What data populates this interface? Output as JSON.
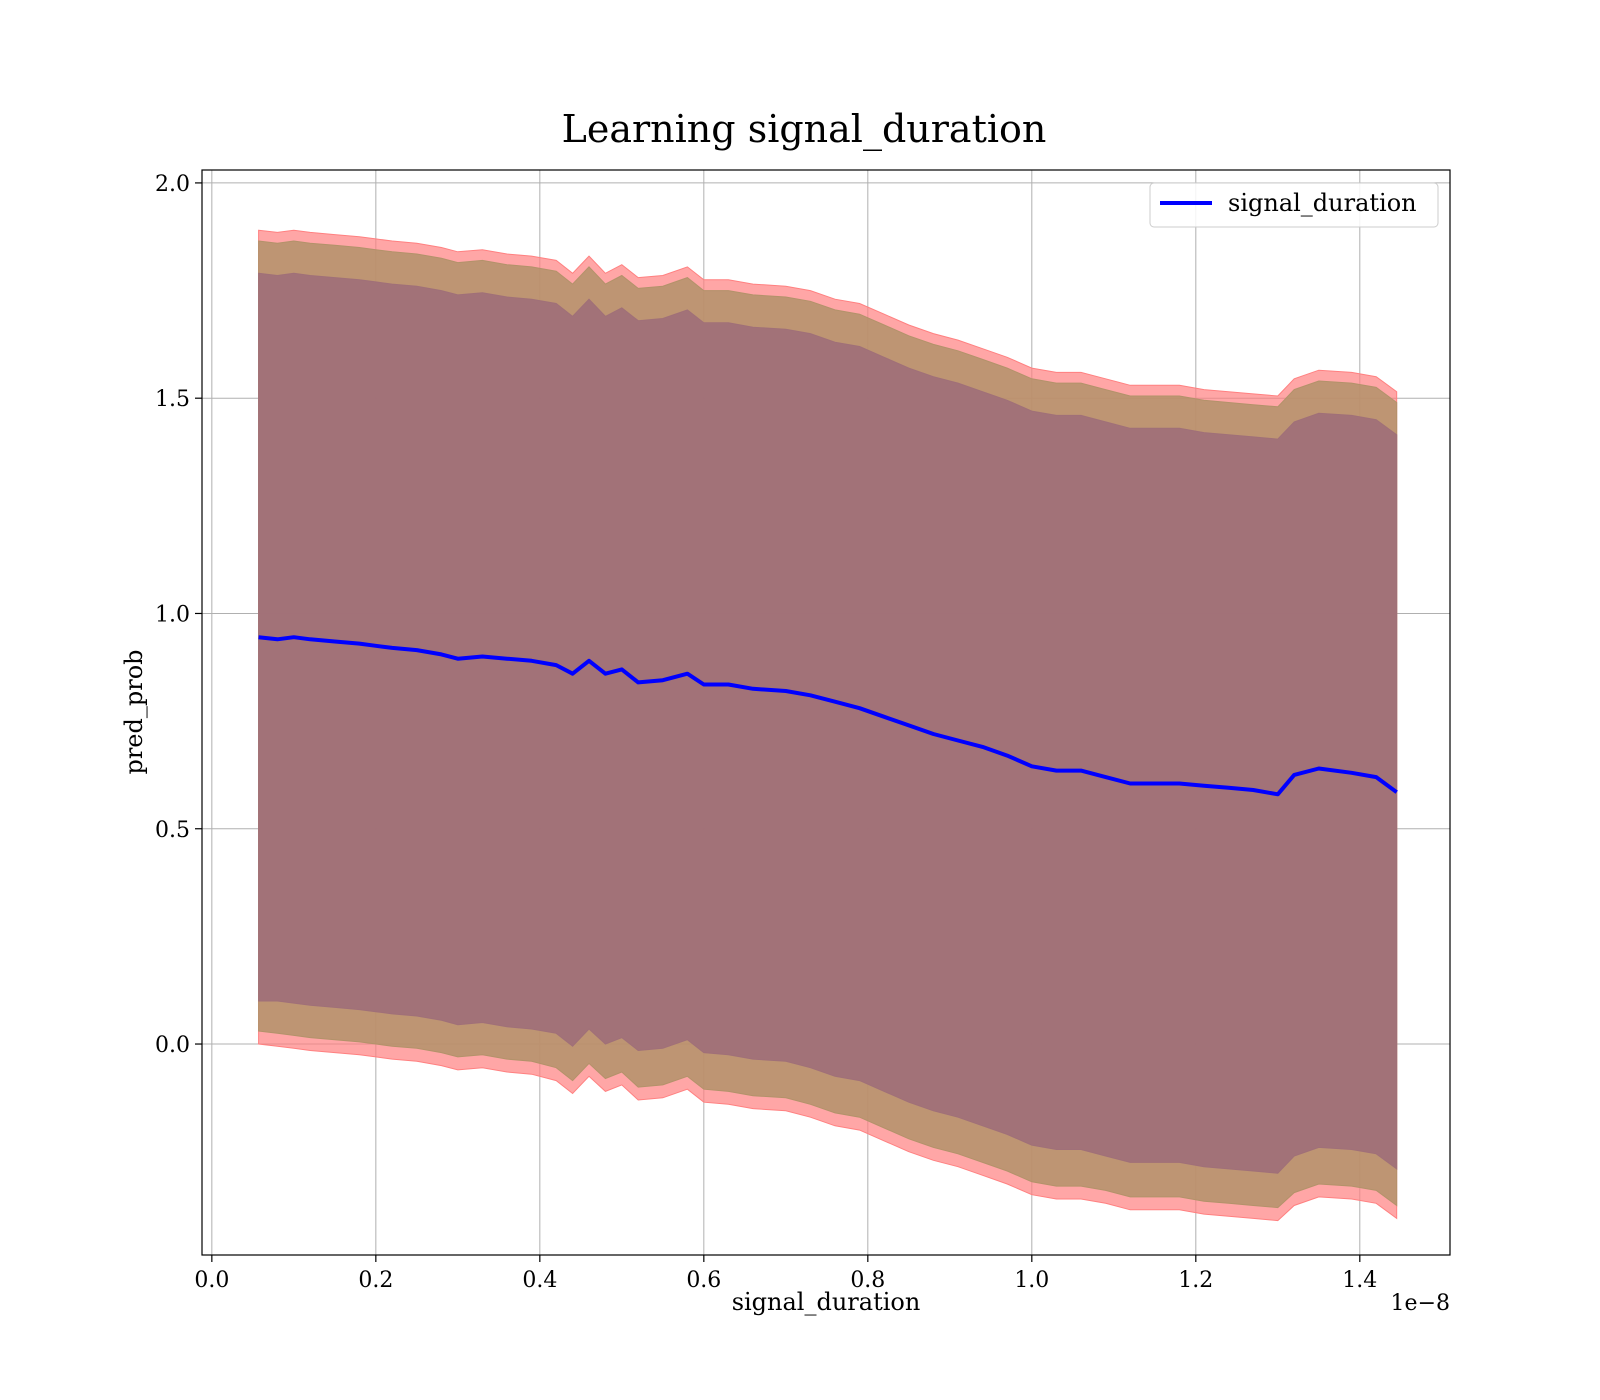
{
  "chart_data": {
    "type": "line",
    "title": "Learning signal_duration",
    "xlabel": "signal_duration",
    "ylabel": "pred_prob",
    "x_offset_text": "1e−8",
    "xlim": [
      -0.012,
      1.51
    ],
    "ylim": [
      -0.49,
      2.03
    ],
    "xticks": [
      0.0,
      0.2,
      0.4,
      0.6,
      0.8,
      1.0,
      1.2,
      1.4
    ],
    "xtick_labels": [
      "0.0",
      "0.2",
      "0.4",
      "0.6",
      "0.8",
      "1.0",
      "1.2",
      "1.4"
    ],
    "yticks": [
      0.0,
      0.5,
      1.0,
      1.5,
      2.0
    ],
    "ytick_labels": [
      "0.0",
      "0.5",
      "1.0",
      "1.5",
      "2.0"
    ],
    "grid": true,
    "legend": {
      "position": "upper-right",
      "entries": [
        "signal_duration"
      ]
    },
    "colors": {
      "line": "#0000ff",
      "band_outer": "#ff8080",
      "band_middle": "#b3926a",
      "band_inner": "#a07078",
      "grid": "#b0b0b0"
    },
    "x": [
      0.057,
      0.08,
      0.1,
      0.12,
      0.15,
      0.18,
      0.2,
      0.22,
      0.25,
      0.28,
      0.3,
      0.33,
      0.36,
      0.39,
      0.42,
      0.44,
      0.46,
      0.48,
      0.5,
      0.52,
      0.55,
      0.58,
      0.6,
      0.63,
      0.66,
      0.7,
      0.73,
      0.76,
      0.79,
      0.82,
      0.85,
      0.88,
      0.91,
      0.94,
      0.97,
      1.0,
      1.03,
      1.06,
      1.09,
      1.12,
      1.15,
      1.18,
      1.21,
      1.24,
      1.27,
      1.3,
      1.32,
      1.35,
      1.39,
      1.42,
      1.445
    ],
    "series": [
      {
        "name": "signal_duration",
        "values": [
          0.945,
          0.94,
          0.945,
          0.94,
          0.935,
          0.93,
          0.925,
          0.92,
          0.915,
          0.905,
          0.895,
          0.9,
          0.895,
          0.89,
          0.88,
          0.86,
          0.89,
          0.86,
          0.87,
          0.84,
          0.845,
          0.86,
          0.835,
          0.835,
          0.825,
          0.82,
          0.81,
          0.795,
          0.78,
          0.76,
          0.74,
          0.72,
          0.705,
          0.69,
          0.67,
          0.645,
          0.635,
          0.635,
          0.62,
          0.605,
          0.605,
          0.605,
          0.6,
          0.595,
          0.59,
          0.58,
          0.625,
          0.64,
          0.63,
          0.62,
          0.585
        ]
      }
    ],
    "bands": [
      {
        "lower": [
          0.0,
          -0.005,
          -0.01,
          -0.015,
          -0.02,
          -0.025,
          -0.03,
          -0.035,
          -0.04,
          -0.05,
          -0.06,
          -0.055,
          -0.065,
          -0.07,
          -0.085,
          -0.115,
          -0.075,
          -0.11,
          -0.095,
          -0.13,
          -0.125,
          -0.105,
          -0.135,
          -0.14,
          -0.15,
          -0.155,
          -0.17,
          -0.19,
          -0.2,
          -0.225,
          -0.25,
          -0.27,
          -0.285,
          -0.305,
          -0.325,
          -0.35,
          -0.36,
          -0.36,
          -0.37,
          -0.385,
          -0.385,
          -0.385,
          -0.395,
          -0.4,
          -0.405,
          -0.41,
          -0.375,
          -0.355,
          -0.36,
          -0.37,
          -0.405
        ],
        "upper": [
          1.89,
          1.885,
          1.89,
          1.885,
          1.88,
          1.875,
          1.87,
          1.865,
          1.86,
          1.85,
          1.84,
          1.845,
          1.835,
          1.83,
          1.82,
          1.79,
          1.83,
          1.79,
          1.81,
          1.78,
          1.785,
          1.805,
          1.775,
          1.775,
          1.765,
          1.76,
          1.75,
          1.73,
          1.72,
          1.695,
          1.67,
          1.65,
          1.635,
          1.615,
          1.595,
          1.57,
          1.56,
          1.56,
          1.545,
          1.53,
          1.53,
          1.53,
          1.52,
          1.515,
          1.51,
          1.505,
          1.545,
          1.565,
          1.56,
          1.55,
          1.515
        ]
      },
      {
        "lower": [
          0.03,
          0.025,
          0.02,
          0.015,
          0.01,
          0.005,
          0.0,
          -0.005,
          -0.01,
          -0.02,
          -0.03,
          -0.025,
          -0.035,
          -0.04,
          -0.055,
          -0.085,
          -0.045,
          -0.08,
          -0.065,
          -0.1,
          -0.095,
          -0.075,
          -0.105,
          -0.11,
          -0.12,
          -0.125,
          -0.14,
          -0.16,
          -0.17,
          -0.195,
          -0.22,
          -0.24,
          -0.255,
          -0.275,
          -0.295,
          -0.32,
          -0.33,
          -0.33,
          -0.34,
          -0.355,
          -0.355,
          -0.355,
          -0.365,
          -0.37,
          -0.375,
          -0.38,
          -0.345,
          -0.325,
          -0.33,
          -0.34,
          -0.375
        ],
        "upper": [
          1.865,
          1.86,
          1.865,
          1.86,
          1.855,
          1.85,
          1.845,
          1.84,
          1.835,
          1.825,
          1.815,
          1.82,
          1.81,
          1.805,
          1.795,
          1.765,
          1.805,
          1.765,
          1.785,
          1.755,
          1.76,
          1.78,
          1.75,
          1.75,
          1.74,
          1.735,
          1.725,
          1.705,
          1.695,
          1.67,
          1.645,
          1.625,
          1.61,
          1.59,
          1.57,
          1.545,
          1.535,
          1.535,
          1.52,
          1.505,
          1.505,
          1.505,
          1.495,
          1.49,
          1.485,
          1.48,
          1.52,
          1.54,
          1.535,
          1.525,
          1.49
        ]
      },
      {
        "lower": [
          0.1,
          0.1,
          0.095,
          0.09,
          0.085,
          0.08,
          0.075,
          0.07,
          0.065,
          0.055,
          0.045,
          0.05,
          0.04,
          0.035,
          0.025,
          -0.005,
          0.035,
          0.0,
          0.015,
          -0.015,
          -0.01,
          0.01,
          -0.02,
          -0.025,
          -0.035,
          -0.04,
          -0.055,
          -0.075,
          -0.085,
          -0.11,
          -0.135,
          -0.155,
          -0.17,
          -0.19,
          -0.21,
          -0.235,
          -0.245,
          -0.245,
          -0.26,
          -0.275,
          -0.275,
          -0.275,
          -0.285,
          -0.29,
          -0.295,
          -0.3,
          -0.26,
          -0.24,
          -0.245,
          -0.255,
          -0.29
        ],
        "upper": [
          1.79,
          1.785,
          1.79,
          1.785,
          1.78,
          1.775,
          1.77,
          1.765,
          1.76,
          1.75,
          1.74,
          1.745,
          1.735,
          1.73,
          1.72,
          1.69,
          1.73,
          1.69,
          1.71,
          1.68,
          1.685,
          1.705,
          1.675,
          1.675,
          1.665,
          1.66,
          1.65,
          1.63,
          1.62,
          1.595,
          1.57,
          1.55,
          1.535,
          1.515,
          1.495,
          1.47,
          1.46,
          1.46,
          1.445,
          1.43,
          1.43,
          1.43,
          1.42,
          1.415,
          1.41,
          1.405,
          1.445,
          1.465,
          1.46,
          1.45,
          1.415
        ]
      }
    ]
  }
}
